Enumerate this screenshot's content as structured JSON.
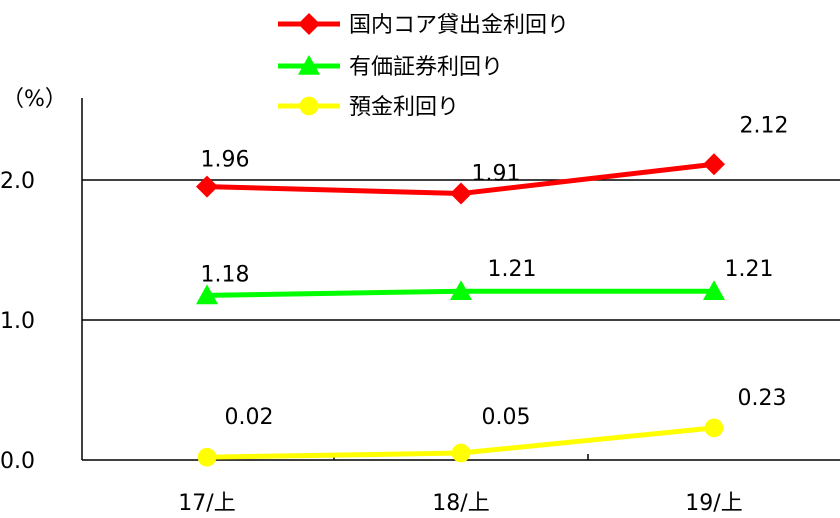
{
  "chart_data": {
    "type": "line",
    "title": "",
    "xlabel": "",
    "ylabel": "",
    "unit_label": "（%）",
    "categories": [
      "17/上",
      "18/上",
      "19/上"
    ],
    "y_ticks": [
      "0.0",
      "1.0",
      "2.0"
    ],
    "ylim": [
      0,
      2.3
    ],
    "grid": true,
    "legend_position": "top",
    "series": [
      {
        "name": "国内コア貸出金利回り",
        "color": "#ff0000",
        "marker": "diamond",
        "values": [
          1.96,
          1.91,
          2.12
        ],
        "labels": [
          "1.96",
          "1.91",
          "2.12"
        ]
      },
      {
        "name": "有価証券利回り",
        "color": "#00ff00",
        "marker": "triangle",
        "values": [
          1.18,
          1.21,
          1.21
        ],
        "labels": [
          "1.18",
          "1.21",
          "1.21"
        ]
      },
      {
        "name": "預金利回り",
        "color": "#ffff00",
        "marker": "circle",
        "values": [
          0.02,
          0.05,
          0.23
        ],
        "labels": [
          "0.02",
          "0.05",
          "0.23"
        ]
      }
    ]
  }
}
